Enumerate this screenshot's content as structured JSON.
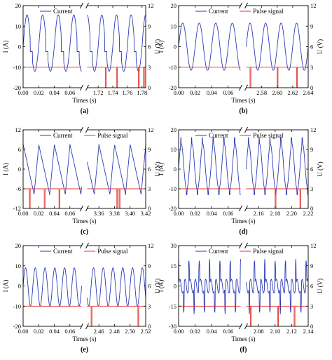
{
  "colors": {
    "current": "#2b3bb5",
    "pulse": "#e0342f",
    "frame": "#000000"
  },
  "chart_data": [
    {
      "type": "line",
      "caption": "(a)",
      "xlabel": "Times (s)",
      "ylabel": "I (A)",
      "y2label": "U (V)",
      "ylim": [
        -20,
        20
      ],
      "yticks": [
        -20,
        -10,
        0,
        10,
        20
      ],
      "y2lim": [
        0,
        12
      ],
      "y2ticks": [
        0,
        3,
        6,
        9,
        12
      ],
      "segments": [
        {
          "xlim": [
            0.0,
            0.075
          ],
          "xticks": [
            "0.00",
            "0.02",
            "0.04",
            "0.06"
          ],
          "pulses": []
        },
        {
          "xlim": [
            1.705,
            1.785
          ],
          "xticks": [
            "1.72",
            "1.74",
            "1.76",
            "1.78"
          ],
          "pulses": [
            1.73,
            1.745,
            1.775,
            1.782
          ]
        }
      ],
      "period": 0.02,
      "amp_pos": 15.5,
      "amp_neg": -12,
      "offset": 0,
      "shape": "step",
      "pulse_base": 3,
      "pulse_high": 0,
      "legend": [
        "Current"
      ]
    },
    {
      "type": "line",
      "caption": "(b)",
      "xlabel": "Times (s)",
      "ylabel": "I (A)",
      "y2label": "U (V)",
      "ylim": [
        -20,
        20
      ],
      "yticks": [
        -20,
        -10,
        0,
        10,
        20
      ],
      "y2lim": [
        0,
        12
      ],
      "y2ticks": [
        0,
        3,
        6,
        9,
        12
      ],
      "segments": [
        {
          "xlim": [
            0.0,
            0.075
          ],
          "xticks": [
            "0.00",
            "0.02",
            "0.04",
            "0.06"
          ],
          "pulses": []
        },
        {
          "xlim": [
            2.56,
            2.64
          ],
          "xticks": [
            "2.58",
            "2.60",
            "2.62",
            "2.64"
          ],
          "pulses": [
            2.565,
            2.6,
            2.625
          ]
        }
      ],
      "period": 0.02,
      "amp_pos": 11.5,
      "amp_neg": -11.5,
      "offset": 0,
      "shape": "sine",
      "pulse_base": 3,
      "pulse_high": 0,
      "legend": [
        "Current",
        "Pulse signal"
      ]
    },
    {
      "type": "line",
      "caption": "(c)",
      "xlabel": "Times (s)",
      "ylabel": "I (A)",
      "y2label": "U (V)",
      "ylim": [
        -12,
        12
      ],
      "yticks": [
        -12,
        -6,
        0,
        6,
        12
      ],
      "y2lim": [
        0,
        12
      ],
      "y2ticks": [
        0,
        3,
        6,
        9,
        12
      ],
      "segments": [
        {
          "xlim": [
            0.0,
            0.075
          ],
          "xticks": [
            "0.00",
            "0.02",
            "0.04",
            "0.06"
          ],
          "pulses": [
            0.008,
            0.027,
            0.046
          ]
        },
        {
          "xlim": [
            3.345,
            3.42
          ],
          "xticks": [
            "3.36",
            "3.38",
            "3.40",
            "3.42"
          ],
          "pulses": [
            3.383,
            3.386
          ]
        }
      ],
      "period": 0.02,
      "amp_pos": 8,
      "amp_neg": -8,
      "offset": 0,
      "shape": "saw",
      "pulse_base": 3,
      "pulse_high": 0,
      "legend": [
        "Current",
        "Pulse signal"
      ]
    },
    {
      "type": "line",
      "caption": "(d)",
      "xlabel": "Times (s)",
      "ylabel": "I (A)",
      "y2label": "U (V)",
      "ylim": [
        -20,
        20
      ],
      "yticks": [
        -20,
        -10,
        0,
        10,
        20
      ],
      "y2lim": [
        0,
        12
      ],
      "y2ticks": [
        0,
        3,
        6,
        9,
        12
      ],
      "segments": [
        {
          "xlim": [
            0.0,
            0.075
          ],
          "xticks": [
            "0.00",
            "0.02",
            "0.04",
            "0.06"
          ],
          "pulses": []
        },
        {
          "xlim": [
            2.145,
            2.22
          ],
          "xticks": [
            "2.16",
            "2.18",
            "2.20",
            "2.22"
          ],
          "pulses": [
            2.18,
            2.21
          ]
        }
      ],
      "period": 0.013,
      "amp_pos": 16,
      "amp_neg": -13,
      "offset": 0,
      "shape": "spiky",
      "pulse_base": 3,
      "pulse_high": 0,
      "legend": [
        "Current",
        "Pulse signal"
      ]
    },
    {
      "type": "line",
      "caption": "(e)",
      "xlabel": "Times (s)",
      "ylabel": "I (A)",
      "y2label": "U (V)",
      "ylim": [
        -20,
        20
      ],
      "yticks": [
        -20,
        -10,
        0,
        10,
        20
      ],
      "y2lim": [
        0,
        12
      ],
      "y2ticks": [
        0,
        3,
        6,
        9,
        12
      ],
      "segments": [
        {
          "xlim": [
            0.0,
            0.075
          ],
          "xticks": [
            "0.00",
            "0.02",
            "0.04",
            "0.06"
          ],
          "pulses": []
        },
        {
          "xlim": [
            2.445,
            2.52
          ],
          "xticks": [
            "2.46",
            "2.48",
            "2.50",
            "2.52"
          ],
          "pulses": [
            2.45,
            2.51
          ]
        }
      ],
      "period": 0.0125,
      "amp_pos": 9,
      "amp_neg": -10,
      "offset": 0,
      "shape": "sine",
      "pulse_base": 3,
      "pulse_high": 0,
      "legend": [
        "Current",
        "Pulse signal"
      ]
    },
    {
      "type": "line",
      "caption": "(f)",
      "xlabel": "Times (s)",
      "ylabel": "I (A)",
      "y2label": "U (V)",
      "ylim": [
        -30,
        30
      ],
      "yticks": [
        -30,
        -15,
        0,
        15,
        30
      ],
      "y2lim": [
        0,
        12
      ],
      "y2ticks": [
        0,
        3,
        6,
        9,
        12
      ],
      "segments": [
        {
          "xlim": [
            0.0,
            0.075
          ],
          "xticks": [
            "0.00",
            "0.02",
            "0.04",
            "0.06"
          ],
          "pulses": []
        },
        {
          "xlim": [
            2.065,
            2.14
          ],
          "xticks": [
            "2.08",
            "2.10",
            "2.12",
            "2.14"
          ],
          "pulses": [
            2.07,
            2.103,
            2.123
          ]
        }
      ],
      "period": 0.0125,
      "amp_pos": 20,
      "amp_neg": -21,
      "offset": 0,
      "shape": "peaks",
      "pulse_base": 3,
      "pulse_high": 0,
      "legend": [
        "Current",
        "Pulse signal"
      ]
    }
  ]
}
